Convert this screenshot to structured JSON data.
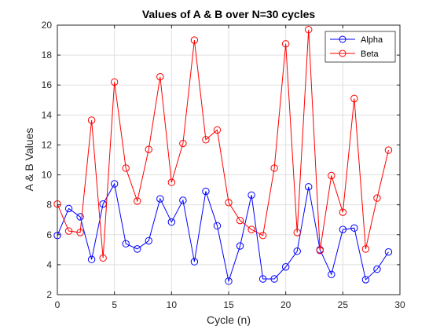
{
  "chart_data": {
    "type": "line",
    "title": "Values of A & B over N=30 cycles",
    "xlabel": "Cycle (n)",
    "ylabel": "A & B Values",
    "xlim": [
      0,
      30
    ],
    "ylim": [
      2,
      20
    ],
    "xticks": [
      0,
      5,
      10,
      15,
      20,
      25,
      30
    ],
    "yticks": [
      2,
      4,
      6,
      8,
      10,
      12,
      14,
      16,
      18,
      20
    ],
    "xtick_labels": [
      "0",
      "5",
      "10",
      "15",
      "20",
      "25",
      "30"
    ],
    "ytick_labels": [
      "2",
      "4",
      "6",
      "8",
      "10",
      "12",
      "14",
      "16",
      "18",
      "20"
    ],
    "grid": true,
    "legend_position": "top-right",
    "marker": "circle",
    "x": [
      0,
      1,
      2,
      3,
      4,
      5,
      6,
      7,
      8,
      9,
      10,
      11,
      12,
      13,
      14,
      15,
      16,
      17,
      18,
      19,
      20,
      21,
      22,
      23,
      24,
      25,
      26,
      27,
      28,
      29
    ],
    "series": [
      {
        "name": "Alpha",
        "color": "#0000ff",
        "values": [
          5.95,
          7.75,
          7.2,
          4.35,
          8.05,
          9.4,
          5.4,
          5.05,
          5.6,
          8.4,
          6.85,
          8.3,
          4.2,
          8.9,
          6.6,
          2.9,
          5.25,
          8.65,
          3.05,
          3.05,
          3.85,
          4.9,
          9.2,
          5.0,
          3.35,
          6.35,
          6.45,
          3.0,
          3.7,
          4.85
        ]
      },
      {
        "name": "Beta",
        "color": "#ff0000",
        "values": [
          8.05,
          6.25,
          6.15,
          13.65,
          4.45,
          16.2,
          10.45,
          8.25,
          11.7,
          16.55,
          9.5,
          12.1,
          19.0,
          12.35,
          13.0,
          8.15,
          6.95,
          6.35,
          5.95,
          10.45,
          18.75,
          6.15,
          19.7,
          4.95,
          9.95,
          7.5,
          15.1,
          5.05,
          8.45,
          11.65
        ]
      }
    ]
  }
}
